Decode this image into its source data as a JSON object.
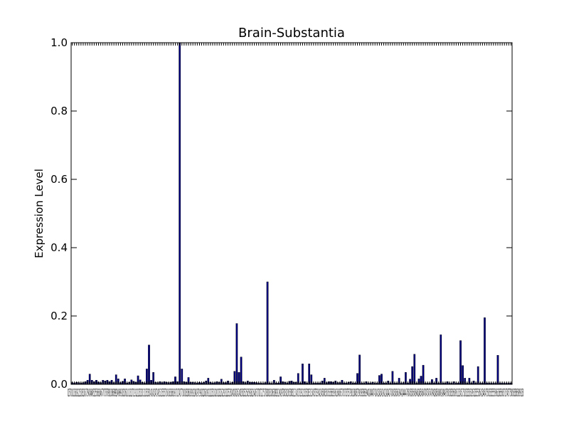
{
  "chart_data": {
    "type": "bar",
    "title": "Brain-Substantia",
    "xlabel": "",
    "ylabel": "Expression Level",
    "ylim": [
      0,
      1.0
    ],
    "yticks": [
      "0.0",
      "0.2",
      "0.4",
      "0.6",
      "0.8",
      "1.0"
    ],
    "bar_color": "#000080",
    "grid": false,
    "legend": "none",
    "values": [
      0.005,
      0.004,
      0.006,
      0.005,
      0.004,
      0.005,
      0.008,
      0.012,
      0.03,
      0.012,
      0.008,
      0.012,
      0.007,
      0.005,
      0.012,
      0.01,
      0.012,
      0.008,
      0.012,
      0.005,
      0.028,
      0.016,
      0.005,
      0.009,
      0.016,
      0.004,
      0.006,
      0.013,
      0.009,
      0.006,
      0.025,
      0.013,
      0.006,
      0.004,
      0.045,
      0.115,
      0.012,
      0.035,
      0.006,
      0.005,
      0.008,
      0.005,
      0.008,
      0.006,
      0.005,
      0.006,
      0.008,
      0.022,
      0.008,
      1.0,
      0.045,
      0.008,
      0.006,
      0.02,
      0.006,
      0.006,
      0.005,
      0.004,
      0.006,
      0.004,
      0.006,
      0.01,
      0.018,
      0.006,
      0.004,
      0.005,
      0.008,
      0.006,
      0.015,
      0.005,
      0.005,
      0.01,
      0.003,
      0.006,
      0.038,
      0.178,
      0.035,
      0.08,
      0.008,
      0.005,
      0.01,
      0.006,
      0.006,
      0.006,
      0.005,
      0.004,
      0.004,
      0.003,
      0.005,
      0.3,
      0.004,
      0.003,
      0.012,
      0.004,
      0.004,
      0.022,
      0.008,
      0.006,
      0.004,
      0.009,
      0.01,
      0.006,
      0.006,
      0.032,
      0.004,
      0.06,
      0.008,
      0.004,
      0.06,
      0.028,
      0.004,
      0.004,
      0.004,
      0.004,
      0.01,
      0.018,
      0.005,
      0.008,
      0.008,
      0.006,
      0.01,
      0.005,
      0.005,
      0.012,
      0.004,
      0.004,
      0.006,
      0.008,
      0.004,
      0.004,
      0.032,
      0.086,
      0.004,
      0.004,
      0.008,
      0.004,
      0.004,
      0.006,
      0.004,
      0.004,
      0.026,
      0.03,
      0.004,
      0.004,
      0.01,
      0.004,
      0.038,
      0.004,
      0.004,
      0.018,
      0.004,
      0.005,
      0.035,
      0.004,
      0.015,
      0.052,
      0.088,
      0.004,
      0.016,
      0.024,
      0.056,
      0.004,
      0.004,
      0.004,
      0.014,
      0.004,
      0.018,
      0.004,
      0.145,
      0.004,
      0.004,
      0.008,
      0.004,
      0.004,
      0.008,
      0.004,
      0.004,
      0.128,
      0.055,
      0.018,
      0.004,
      0.018,
      0.004,
      0.01,
      0.004,
      0.052,
      0.004,
      0.004,
      0.195,
      0.004,
      0.004,
      0.004,
      0.004,
      0.004,
      0.085,
      0.004,
      0.004,
      0.004,
      0.004,
      0.004,
      0.004
    ],
    "xtick_text": "02578101316192225283134373943464952555861646770737679818386899294969910310611011311711912212512813113513814014314714915215515716016316616917117417718018318618919219419719920220620921221521822022322622923223523824024324524825025325625926126426727027227527828028328628929129429730030230530831131431731932232532833133433733934234534835035335635936136436737037337537938138438739039339639940140440741041341641942142442743043343643944144444745045345645946246546847047347647948248548849149449750050350650951151451752052352652953253553854154454755055355555956256556857157457758058358658959158"
  }
}
